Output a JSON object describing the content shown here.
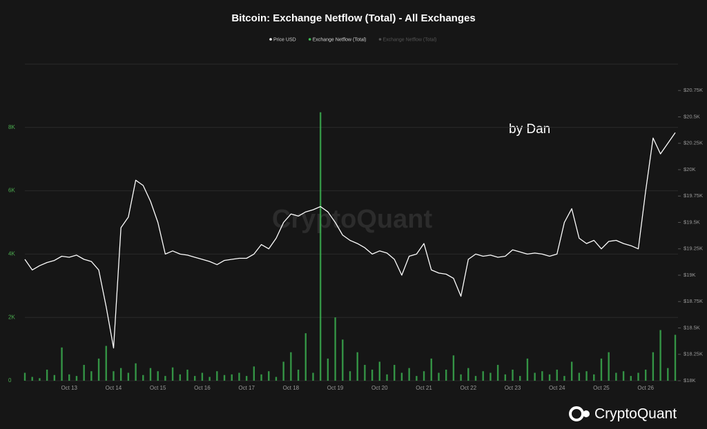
{
  "chart_data": {
    "type": "bar-line",
    "title": "Bitcoin: Exchange Netflow (Total) - All Exchanges",
    "watermark": "CryptoQuant",
    "annotation": "by Dan",
    "logo": "CryptoQuant",
    "inactive_legend": "Exchange Netflow (Total)",
    "categories": [
      null,
      null,
      null,
      null,
      null,
      null,
      "Oct 13",
      null,
      null,
      null,
      null,
      null,
      "Oct 14",
      null,
      null,
      null,
      null,
      null,
      "Oct 15",
      null,
      null,
      null,
      null,
      null,
      "Oct 16",
      null,
      null,
      null,
      null,
      null,
      "Oct 17",
      null,
      null,
      null,
      null,
      null,
      "Oct 18",
      null,
      null,
      null,
      null,
      null,
      "Oct 19",
      null,
      null,
      null,
      null,
      null,
      "Oct 20",
      null,
      null,
      null,
      null,
      null,
      "Oct 21",
      null,
      null,
      null,
      null,
      null,
      "Oct 22",
      null,
      null,
      null,
      null,
      null,
      "Oct 23",
      null,
      null,
      null,
      null,
      null,
      "Oct 24",
      null,
      null,
      null,
      null,
      null,
      "Oct 25",
      null,
      null,
      null,
      null,
      null,
      "Oct 26",
      null,
      null,
      null,
      null
    ],
    "series": [
      {
        "name": "Price USD",
        "color": "#ffffff",
        "kind": "line",
        "axis": "y2",
        "values": [
          19150,
          19050,
          19090,
          19120,
          19140,
          19180,
          19170,
          19190,
          19150,
          19130,
          19050,
          18700,
          18310,
          19450,
          19550,
          19900,
          19850,
          19700,
          19500,
          19200,
          19230,
          19200,
          19190,
          19170,
          19150,
          19130,
          19100,
          19140,
          19150,
          19160,
          19160,
          19200,
          19290,
          19250,
          19350,
          19500,
          19580,
          19560,
          19600,
          19620,
          19650,
          19600,
          19500,
          19380,
          19330,
          19300,
          19260,
          19200,
          19230,
          19210,
          19150,
          19000,
          19180,
          19200,
          19300,
          19050,
          19020,
          19010,
          18970,
          18800,
          19150,
          19200,
          19180,
          19190,
          19170,
          19180,
          19240,
          19220,
          19200,
          19210,
          19200,
          19180,
          19200,
          19500,
          19630,
          19350,
          19300,
          19330,
          19250,
          19320,
          19330,
          19300,
          19280,
          19250,
          19800,
          20300,
          20150,
          20250,
          20350
        ]
      },
      {
        "name": "Exchange Netflow (Total)",
        "color": "#3fbf56",
        "kind": "bar",
        "values": [
          250,
          120,
          80,
          350,
          180,
          1050,
          200,
          150,
          500,
          300,
          700,
          1100,
          300,
          400,
          250,
          550,
          180,
          400,
          300,
          150,
          420,
          200,
          350,
          150,
          250,
          120,
          300,
          180,
          200,
          250,
          150,
          450,
          200,
          300,
          120,
          600,
          900,
          350,
          1500,
          250,
          8480,
          700,
          2000,
          1300,
          300,
          900,
          500,
          350,
          600,
          200,
          500,
          250,
          400,
          150,
          300,
          700,
          250,
          350,
          800,
          200,
          400,
          150,
          300,
          250,
          500,
          200,
          350,
          150,
          700,
          250,
          300,
          200,
          350,
          150,
          600,
          250,
          300,
          200,
          700,
          900,
          250,
          300,
          150,
          250,
          350,
          900,
          1600,
          400,
          1450
        ]
      }
    ],
    "ylim": [
      0,
      10000
    ],
    "yticks": [
      0,
      {
        "value": 2000,
        "label": "2K"
      },
      {
        "value": 4000,
        "label": "4K"
      },
      {
        "value": 6000,
        "label": "6K"
      },
      {
        "value": 8000,
        "label": "8K"
      }
    ],
    "y2lim": [
      18000,
      21000
    ],
    "y2ticks": [
      {
        "value": 18000,
        "label": "$18K"
      },
      {
        "value": 18250,
        "label": "$18.25K"
      },
      {
        "value": 18500,
        "label": "$18.5K"
      },
      {
        "value": 18750,
        "label": "$18.75K"
      },
      {
        "value": 19000,
        "label": "$19K"
      },
      {
        "value": 19250,
        "label": "$19.25K"
      },
      {
        "value": 19500,
        "label": "$19.5K"
      },
      {
        "value": 19750,
        "label": "$19.75K"
      },
      {
        "value": 20000,
        "label": "$20K"
      },
      {
        "value": 20250,
        "label": "$20.25K"
      },
      {
        "value": 20500,
        "label": "$20.5K"
      },
      {
        "value": 20750,
        "label": "$20.75K"
      }
    ],
    "grid": true,
    "legend": "top"
  }
}
